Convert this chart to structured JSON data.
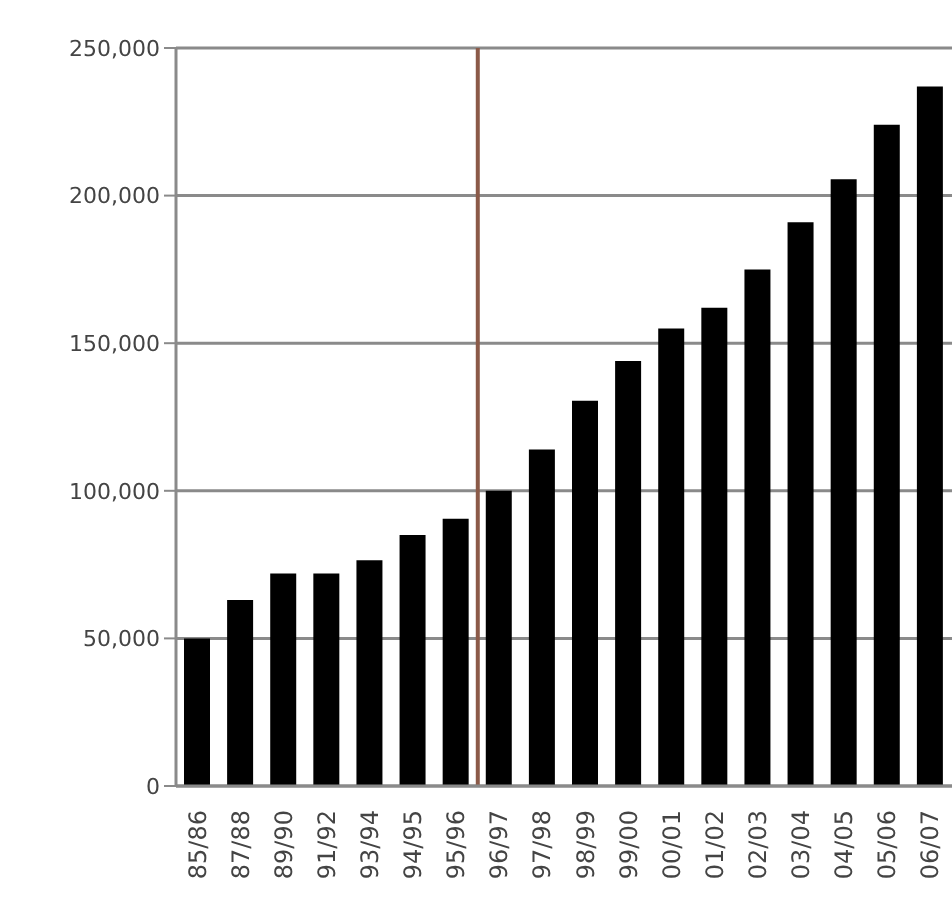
{
  "chart_data": {
    "type": "bar",
    "categories": [
      "85/86",
      "87/88",
      "89/90",
      "91/92",
      "93/94",
      "94/95",
      "95/96",
      "96/97",
      "97/98",
      "98/99",
      "99/00",
      "00/01",
      "01/02",
      "02/03",
      "03/04",
      "04/05",
      "05/06",
      "06/07"
    ],
    "values": [
      50000,
      63000,
      72000,
      72000,
      76500,
      85000,
      90500,
      100000,
      114000,
      130500,
      144000,
      155000,
      162000,
      175000,
      191000,
      205500,
      224000,
      237000
    ],
    "color": "#000000",
    "ylim": [
      0,
      250000
    ],
    "yticks": [
      0,
      {
        "value": 50000,
        "label": "50,000"
      },
      {
        "value": 100000,
        "label": "100,000"
      },
      {
        "value": 150000,
        "label": "150,000"
      },
      {
        "value": 200000,
        "label": "200,000"
      },
      {
        "value": 250000,
        "label": "250,000"
      }
    ],
    "grid": "y",
    "ref_lines": [
      {
        "axis": "x",
        "value": "95/96",
        "color": "#8b5a48"
      }
    ]
  }
}
